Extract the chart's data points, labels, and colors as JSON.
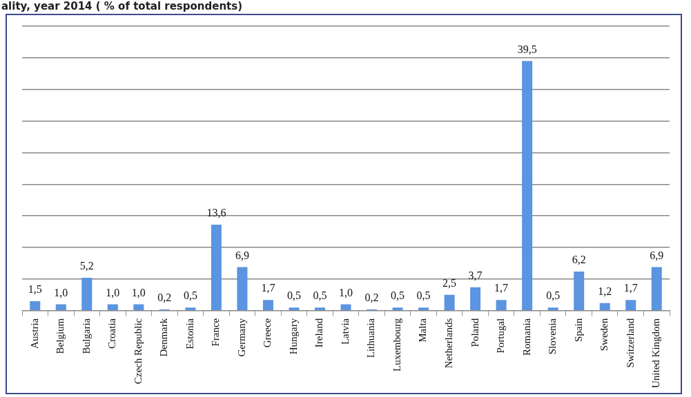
{
  "chart_data": {
    "type": "bar",
    "title": "ality, year 2014 ( % of total respondents)",
    "categories": [
      "Austria",
      "Belgium",
      "Bulgaria",
      "Croatia",
      "Czech Republic",
      "Denmark",
      "Estonia",
      "France",
      "Germany",
      "Greece",
      "Hungary",
      "Ireland",
      "Latvia",
      "Lithuania",
      "Luxembourg",
      "Malta",
      "Netherlands",
      "Poland",
      "Portugal",
      "Romania",
      "Slovenia",
      "Spain",
      "Sweden",
      "Switzerland",
      "United Kingdom"
    ],
    "values": [
      1.5,
      1.0,
      5.2,
      1.0,
      1.0,
      0.2,
      0.5,
      13.6,
      6.9,
      1.7,
      0.5,
      0.5,
      1.0,
      0.2,
      0.5,
      0.5,
      2.5,
      3.7,
      1.7,
      39.5,
      0.5,
      6.2,
      1.2,
      1.7,
      6.9
    ],
    "value_labels": [
      "1,5",
      "1,0",
      "5,2",
      "1,0",
      "1,0",
      "0,2",
      "0,5",
      "13,6",
      "6,9",
      "1,7",
      "0,5",
      "0,5",
      "1,0",
      "0,2",
      "0,5",
      "0,5",
      "2,5",
      "3,7",
      "1,7",
      "39,5",
      "0,5",
      "6,2",
      "1,2",
      "1,7",
      "6,9"
    ],
    "color": "#5b94e0",
    "tick_labels": "x",
    "grid": "y",
    "legend": false
  }
}
